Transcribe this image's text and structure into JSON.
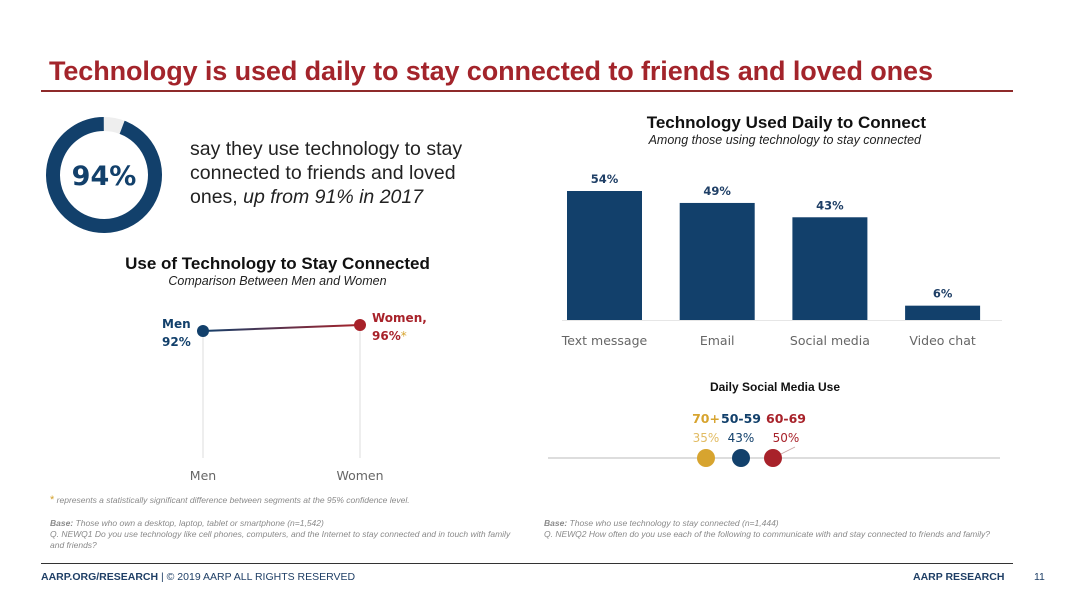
{
  "title": "Technology is used daily to stay connected to friends and loved ones",
  "colors": {
    "title_red": "#a3242b",
    "navy": "#12406b",
    "red": "#a8222a",
    "gold": "#d7a42f",
    "track": "#eeeeee"
  },
  "headline_stat": {
    "value_label": "94%",
    "value": 94,
    "text_main": "say they use technology to stay connected to friends and loved ones,",
    "text_italic": "up from 91% in 2017"
  },
  "chart_data": [
    {
      "type": "line",
      "title": "Use of Technology to Stay Connected",
      "subtitle": "Comparison Between Men and Women",
      "categories": [
        "Men",
        "Women"
      ],
      "values": [
        92,
        96
      ],
      "point_labels": [
        {
          "name": "Men",
          "value_label": "92%"
        },
        {
          "name": "Women,",
          "value_label": "96%",
          "marker": "*"
        }
      ],
      "xlabel": "",
      "ylabel": ""
    },
    {
      "type": "bar",
      "title": "Technology Used Daily to Connect",
      "subtitle": "Among those using technology to stay connected",
      "categories": [
        "Text message",
        "Email",
        "Social media",
        "Video chat"
      ],
      "values": [
        54,
        49,
        43,
        6
      ],
      "value_labels": [
        "54%",
        "49%",
        "43%",
        "6%"
      ],
      "ylim": [
        0,
        60
      ],
      "grid": false
    },
    {
      "type": "scatter",
      "title": "Daily Social Media Use",
      "categories": [
        "70+",
        "50-59",
        "60-69"
      ],
      "values": [
        35,
        43,
        50
      ],
      "value_labels": [
        "35%",
        "43%",
        "50%"
      ],
      "series_colors": [
        "#d7a42f",
        "#12406b",
        "#a8222a"
      ]
    }
  ],
  "footnotes": {
    "sig_marker": "*",
    "sig_note": "represents a statistically significant difference between segments at the 95% confidence level.",
    "left": {
      "base_label": "Base:",
      "base_text": "Those who own a desktop, laptop, tablet or smartphone (n=1,542)",
      "question": "Q. NEWQ1 Do you use technology like cell phones, computers, and the Internet to stay connected and in touch with family and friends?"
    },
    "right": {
      "base_label": "Base:",
      "base_text": "Those who use technology to stay connected (n=1,444)",
      "question": "Q. NEWQ2 How often do you use each of the following to communicate with and stay connected to friends and family?"
    }
  },
  "footer": {
    "site": "AARP.ORG/RESEARCH",
    "copyright": "| © 2019 AARP ALL RIGHTS RESERVED",
    "brand": "AARP RESEARCH",
    "page_number": "11"
  }
}
